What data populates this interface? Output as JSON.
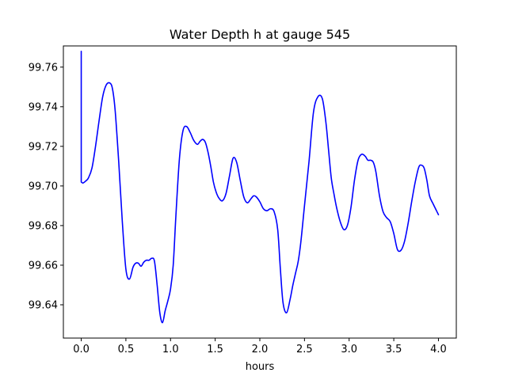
{
  "chart_data": {
    "type": "line",
    "title": "Water Depth h at gauge 545",
    "xlabel": "hours",
    "ylabel": "",
    "xlim": [
      -0.2,
      4.2
    ],
    "ylim": [
      99.6232,
      99.7707
    ],
    "xticks": [
      0.0,
      0.5,
      1.0,
      1.5,
      2.0,
      2.5,
      3.0,
      3.5,
      4.0
    ],
    "xtick_labels": [
      "0.0",
      "0.5",
      "1.0",
      "1.5",
      "2.0",
      "2.5",
      "3.0",
      "3.5",
      "4.0"
    ],
    "yticks": [
      99.64,
      99.66,
      99.68,
      99.7,
      99.72,
      99.74,
      99.76
    ],
    "ytick_labels": [
      "99.64",
      "99.66",
      "99.68",
      "99.70",
      "99.72",
      "99.74",
      "99.76"
    ],
    "grid": false,
    "legend": false,
    "series": [
      {
        "color": "#0000ff",
        "x": [
          0.0,
          0.0,
          0.02,
          0.05,
          0.08,
          0.12,
          0.16,
          0.2,
          0.24,
          0.28,
          0.32,
          0.35,
          0.38,
          0.42,
          0.46,
          0.5,
          0.54,
          0.58,
          0.61,
          0.64,
          0.67,
          0.7,
          0.73,
          0.76,
          0.79,
          0.82,
          0.85,
          0.88,
          0.91,
          0.94,
          0.97,
          1.0,
          1.03,
          1.06,
          1.1,
          1.14,
          1.18,
          1.22,
          1.26,
          1.3,
          1.33,
          1.36,
          1.39,
          1.42,
          1.45,
          1.48,
          1.51,
          1.54,
          1.58,
          1.62,
          1.66,
          1.7,
          1.74,
          1.78,
          1.82,
          1.86,
          1.9,
          1.93,
          1.96,
          2.0,
          2.04,
          2.08,
          2.12,
          2.16,
          2.2,
          2.23,
          2.26,
          2.3,
          2.34,
          2.37,
          2.4,
          2.43,
          2.46,
          2.5,
          2.55,
          2.6,
          2.65,
          2.7,
          2.74,
          2.77,
          2.8,
          2.83,
          2.86,
          2.9,
          2.94,
          2.98,
          3.02,
          3.06,
          3.1,
          3.14,
          3.18,
          3.21,
          3.24,
          3.27,
          3.3,
          3.34,
          3.38,
          3.42,
          3.46,
          3.5,
          3.54,
          3.58,
          3.62,
          3.66,
          3.7,
          3.74,
          3.78,
          3.81,
          3.84,
          3.87,
          3.9,
          3.94,
          4.0
        ],
        "values": [
          99.768,
          99.702,
          99.7015,
          99.7025,
          99.704,
          99.709,
          99.72,
          99.733,
          99.745,
          99.751,
          99.752,
          99.749,
          99.738,
          99.712,
          99.682,
          99.658,
          99.653,
          99.659,
          99.661,
          99.661,
          99.6595,
          99.6615,
          99.6625,
          99.6625,
          99.6635,
          99.662,
          99.65,
          99.636,
          99.631,
          99.637,
          99.642,
          99.648,
          99.66,
          99.685,
          99.714,
          99.728,
          99.73,
          99.727,
          99.723,
          99.721,
          99.7225,
          99.7235,
          99.722,
          99.717,
          99.71,
          99.702,
          99.697,
          99.694,
          99.6925,
          99.696,
          99.705,
          99.714,
          99.712,
          99.703,
          99.6945,
          99.6915,
          99.6935,
          99.695,
          99.6945,
          99.692,
          99.6885,
          99.6875,
          99.6885,
          99.687,
          99.678,
          99.658,
          99.641,
          99.636,
          99.643,
          99.65,
          99.656,
          99.662,
          99.672,
          99.69,
          99.712,
          99.737,
          99.745,
          99.744,
          99.732,
          99.718,
          99.704,
          99.696,
          99.689,
          99.682,
          99.678,
          99.68,
          99.689,
          99.703,
          99.713,
          99.716,
          99.715,
          99.713,
          99.713,
          99.712,
          99.707,
          99.695,
          99.687,
          99.684,
          99.682,
          99.676,
          99.668,
          99.6675,
          99.672,
          99.681,
          99.692,
          99.702,
          99.7095,
          99.7105,
          99.709,
          99.703,
          99.695,
          99.691,
          99.6855
        ]
      }
    ]
  }
}
